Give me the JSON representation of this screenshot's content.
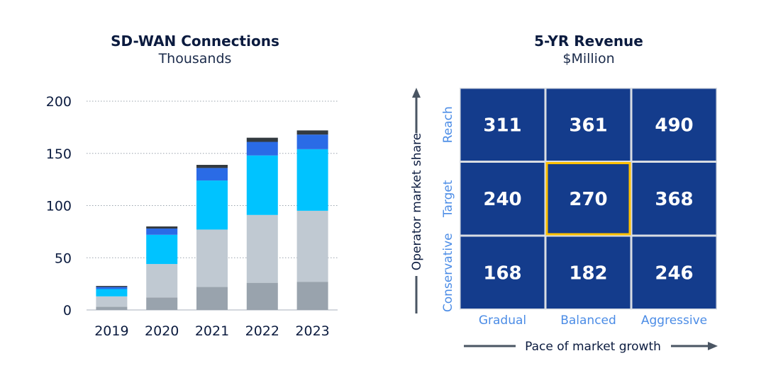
{
  "chart_data": [
    {
      "type": "bar",
      "stacked": true,
      "title": "SD-WAN Connections",
      "subtitle": "Thousands",
      "categories": [
        "2019",
        "2020",
        "2021",
        "2022",
        "2023"
      ],
      "ylim": [
        0,
        200
      ],
      "yticks": [
        0,
        50,
        100,
        150,
        200
      ],
      "grid": true,
      "series": [
        {
          "color": "#99a3ad",
          "values": [
            3,
            12,
            22,
            26,
            27
          ]
        },
        {
          "color": "#c0c9d2",
          "values": [
            10,
            32,
            55,
            65,
            68
          ]
        },
        {
          "color": "#00c3ff",
          "values": [
            7,
            28,
            47,
            57,
            59
          ]
        },
        {
          "color": "#2a6be6",
          "values": [
            2,
            6,
            12,
            13,
            14
          ]
        },
        {
          "color": "#333a40",
          "values": [
            1,
            2,
            3,
            4,
            4
          ]
        }
      ]
    },
    {
      "type": "heatmap",
      "title": "5-YR Revenue",
      "subtitle": "$Million",
      "xlabel": "Pace of market growth",
      "ylabel": "Operator  market share",
      "columns": [
        "Gradual",
        "Balanced",
        "Aggressive"
      ],
      "rows": [
        "Reach",
        "Target",
        "Conservative"
      ],
      "values": [
        [
          311,
          361,
          490
        ],
        [
          240,
          270,
          368
        ],
        [
          168,
          182,
          246
        ]
      ],
      "highlight": {
        "row": 1,
        "col": 1
      },
      "cell_color": "#143c8c",
      "highlight_color": "#ffc000"
    }
  ]
}
